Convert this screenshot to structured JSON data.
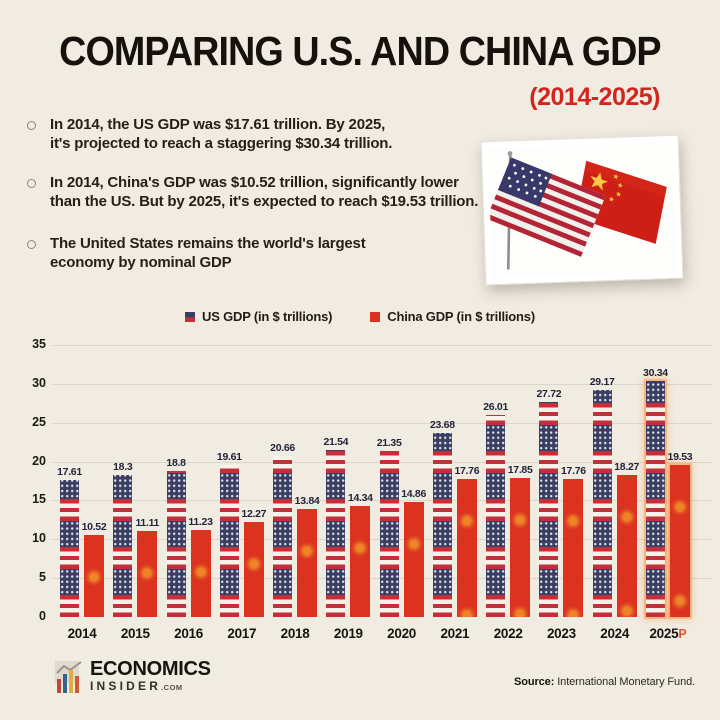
{
  "header": {
    "title": "COMPARING U.S. AND CHINA GDP",
    "subtitle": "(2014-2025)"
  },
  "bullets": [
    "In 2014, the US GDP was $17.61 trillion. By 2025, it's projected to reach a staggering $30.34 trillion.",
    "In 2014, China's GDP was $10.52 trillion, significantly lower than the US. But by 2025, it's expected to reach $19.53 trillion.",
    "The United States remains the world's largest economy by nominal GDP"
  ],
  "flags_image": {
    "description": "Photo card of crossed United States and China flags"
  },
  "chart_data": {
    "type": "bar",
    "title": "",
    "categories": [
      "2014",
      "2015",
      "2016",
      "2017",
      "2018",
      "2019",
      "2020",
      "2021",
      "2022",
      "2023",
      "2024",
      "2025"
    ],
    "series": [
      {
        "name": "US GDP (in $ trillions)",
        "style": "us-flag-pattern",
        "values": [
          17.61,
          18.3,
          18.8,
          19.61,
          20.66,
          21.54,
          21.35,
          23.68,
          26.01,
          27.72,
          29.17,
          30.34
        ],
        "labels": [
          "17.61",
          "18.3",
          "18.8",
          "19.61",
          "20.66",
          "21.54",
          "21.35",
          "23.68",
          "26.01",
          "27.72",
          "29.17",
          "30.34"
        ]
      },
      {
        "name": "China GDP (in $ trillions)",
        "style": "china-flag-pattern",
        "color": "#dc3320",
        "values": [
          10.52,
          11.11,
          11.23,
          12.27,
          13.84,
          14.34,
          14.86,
          17.76,
          17.85,
          17.76,
          18.27,
          19.53
        ],
        "labels": [
          "10.52",
          "11.11",
          "11.23",
          "12.27",
          "13.84",
          "14.34",
          "14.86",
          "17.76",
          "17.85",
          "17.76",
          "18.27",
          "19.53"
        ]
      }
    ],
    "ylim": [
      0,
      35
    ],
    "yticks": [
      0,
      5,
      10,
      15,
      20,
      25,
      30,
      35
    ],
    "grid": true,
    "legend_position": "top",
    "projected_year": "2025",
    "projected_marker": "P"
  },
  "footer": {
    "logo_name": "ECONOMICS",
    "logo_sub": "INSIDER",
    "logo_tld": ".COM",
    "source_label": "Source:",
    "source_text": " International Monetary Fund."
  },
  "colors": {
    "background": "#f1ece2",
    "accent_red": "#d2251e",
    "us_navy": "#3a3e63",
    "us_stripe_red": "#c42f39",
    "china_red": "#dc3320",
    "ink": "#16110d"
  }
}
